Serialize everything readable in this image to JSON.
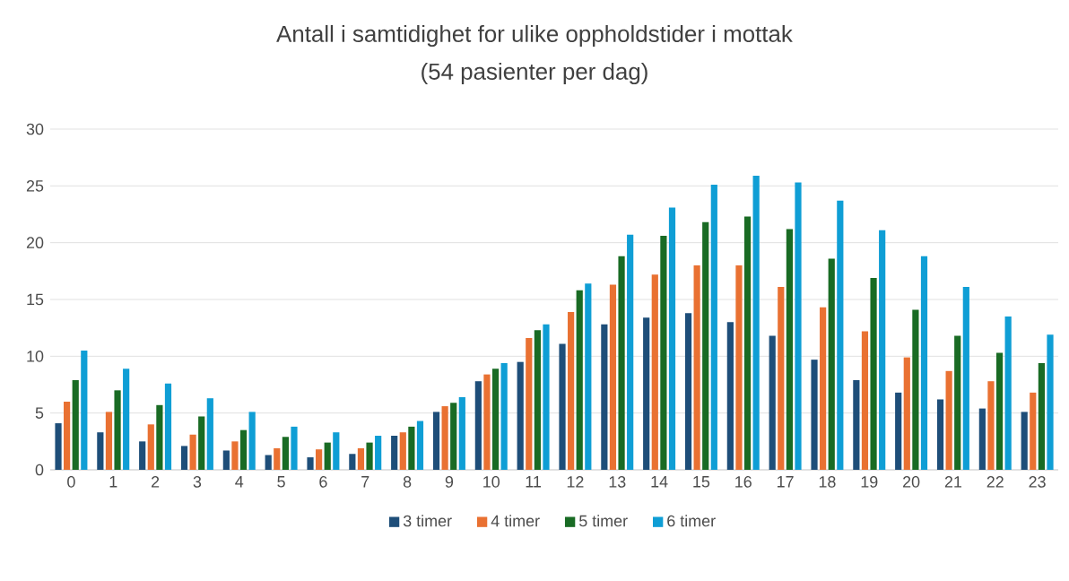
{
  "chart_data": {
    "type": "bar",
    "title": "Antall i samtidighet for ulike oppholdstider i mottak",
    "subtitle": "(54 pasienter per dag)",
    "categories": [
      "0",
      "1",
      "2",
      "3",
      "4",
      "5",
      "6",
      "7",
      "8",
      "9",
      "10",
      "11",
      "12",
      "13",
      "14",
      "15",
      "16",
      "17",
      "18",
      "19",
      "20",
      "21",
      "22",
      "23"
    ],
    "series": [
      {
        "name": "3 timer",
        "color": "#1e4e79",
        "values": [
          4.1,
          3.3,
          2.5,
          2.1,
          1.7,
          1.3,
          1.1,
          1.4,
          3.0,
          5.1,
          7.8,
          9.5,
          11.1,
          12.8,
          13.4,
          13.8,
          13.0,
          11.8,
          9.7,
          7.9,
          6.8,
          6.2,
          5.4,
          5.1
        ]
      },
      {
        "name": "4 timer",
        "color": "#e97132",
        "values": [
          6.0,
          5.1,
          4.0,
          3.1,
          2.5,
          1.9,
          1.8,
          1.9,
          3.3,
          5.6,
          8.4,
          11.6,
          13.9,
          16.3,
          17.2,
          18.0,
          18.0,
          16.1,
          14.3,
          12.2,
          9.9,
          8.7,
          7.8,
          6.8
        ]
      },
      {
        "name": "5 timer",
        "color": "#196b24",
        "values": [
          7.9,
          7.0,
          5.7,
          4.7,
          3.5,
          2.9,
          2.4,
          2.4,
          3.8,
          5.9,
          8.9,
          12.3,
          15.8,
          18.8,
          20.6,
          21.8,
          22.3,
          21.2,
          18.6,
          16.9,
          14.1,
          11.8,
          10.3,
          9.4
        ]
      },
      {
        "name": "6 timer",
        "color": "#0f9ed5",
        "values": [
          10.5,
          8.9,
          7.6,
          6.3,
          5.1,
          3.8,
          3.3,
          3.0,
          4.3,
          6.4,
          9.4,
          12.8,
          16.4,
          20.7,
          23.1,
          25.1,
          25.9,
          25.3,
          23.7,
          21.1,
          18.8,
          16.1,
          13.5,
          11.9
        ]
      }
    ],
    "ylim": [
      0,
      30
    ],
    "yticks": [
      0,
      5,
      10,
      15,
      20,
      25,
      30
    ],
    "grid": "y",
    "legend": "bottom"
  }
}
